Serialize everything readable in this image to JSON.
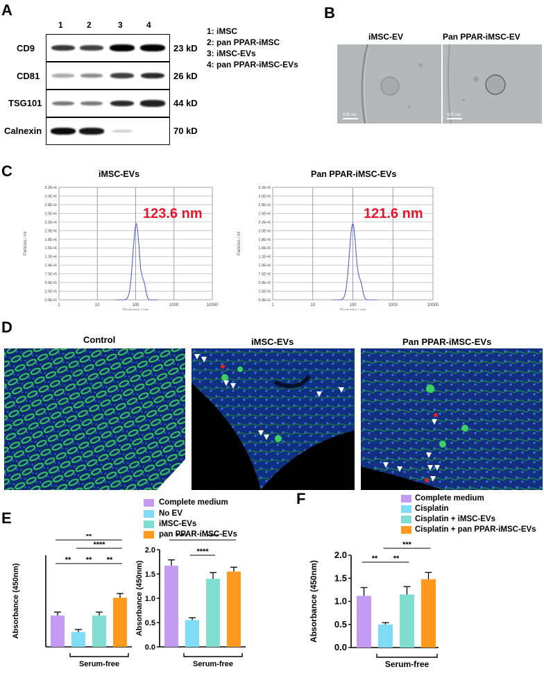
{
  "panelA": {
    "label": "A",
    "lanes": [
      "1",
      "2",
      "3",
      "4"
    ],
    "rows": [
      {
        "name": "CD9",
        "kd": "23 kD",
        "bands": [
          0.75,
          0.7,
          1.0,
          1.0
        ]
      },
      {
        "name": "CD81",
        "kd": "26 kD",
        "bands": [
          0.2,
          0.35,
          0.7,
          0.8
        ]
      },
      {
        "name": "TSG101",
        "kd": "44 kD",
        "bands": [
          0.45,
          0.45,
          0.8,
          0.85
        ]
      },
      {
        "name": "Calnexin",
        "kd": "70 kD",
        "bands": [
          0.95,
          0.9,
          0.05,
          0.0
        ]
      }
    ],
    "legend": [
      "1: iMSC",
      "2: pan PPAR-iMSC",
      "3: iMSC-EVs",
      "4: pan PPAR-iMSC-EVs"
    ]
  },
  "panelB": {
    "label": "B",
    "images": [
      {
        "title": "iMSC-EV",
        "scalebar": "100 nm"
      },
      {
        "title": "Pan PPAR-iMSC-EV",
        "scalebar": "100 nm"
      }
    ]
  },
  "panelC": {
    "label": "C",
    "charts": [
      {
        "title": "iMSC-EVs",
        "peak": "123.6 nm"
      },
      {
        "title": "Pan PPAR-iMSC-EVs",
        "peak": "121.6 nm"
      }
    ],
    "ylabel": "Particles / ml",
    "xlabel": "Diameter / nm",
    "yticks": [
      "0.0E+0",
      "2.5E+5",
      "5.0E+5",
      "7.5E+5",
      "1.0E+6",
      "1.2E+6",
      "1.5E+6",
      "1.8E+6",
      "2.0E+6",
      "2.2E+6",
      "2.5E+6",
      "2.8E+6",
      "3.0E+6",
      "3.2E+6"
    ],
    "xticks": [
      "1",
      "10",
      "100",
      "1000",
      "10000"
    ]
  },
  "panelD": {
    "label": "D",
    "images": [
      {
        "title": "Control"
      },
      {
        "title": "iMSC-EVs"
      },
      {
        "title": "Pan PPAR-iMSC-EVs"
      }
    ]
  },
  "panelE": {
    "label": "E",
    "legend": [
      {
        "name": "Complete medium",
        "color": "#c39bf2"
      },
      {
        "name": "No EV",
        "color": "#7fdcf7"
      },
      {
        "name": "iMSC-EVs",
        "color": "#7fded0"
      },
      {
        "name": "pan PPAR-iMSC-EVs",
        "color": "#ff9a1f"
      }
    ],
    "group_label": "Serum-free"
  },
  "panelF": {
    "label": "F",
    "legend": [
      {
        "name": "Complete medium",
        "color": "#c39bf2"
      },
      {
        "name": "Cisplatin",
        "color": "#7fdcf7"
      },
      {
        "name": "Cisplatin + iMSC-EVs",
        "color": "#7fded0"
      },
      {
        "name": "Cisplatin + pan PPAR-iMSC-EVs",
        "color": "#ff9a1f"
      }
    ],
    "group_label": "Serum-free"
  },
  "chart_data": [
    {
      "type": "bar",
      "ylabel": "Absorbance (450nm)",
      "categories": [
        "Complete medium",
        "No EV",
        "iMSC-EVs",
        "pan PPAR-iMSC-EVs"
      ],
      "values": [
        0.74,
        0.35,
        0.74,
        1.16
      ],
      "errors": [
        0.08,
        0.06,
        0.08,
        0.1
      ],
      "sig": [
        {
          "from": 0,
          "to": 3,
          "label": "**"
        },
        {
          "from": 1,
          "to": 3,
          "label": "****"
        },
        {
          "from": 0,
          "to": 1,
          "label": "**"
        },
        {
          "from": 1,
          "to": 2,
          "label": "**"
        },
        {
          "from": 2,
          "to": 3,
          "label": "**"
        }
      ]
    },
    {
      "type": "bar",
      "ylabel": "Absorbance (450nm)",
      "ylim": [
        0,
        2.0
      ],
      "yticks": [
        "0.0",
        "0.5",
        "1.0",
        "1.5",
        "2.0"
      ],
      "categories": [
        "Complete medium",
        "No EV",
        "iMSC-EVs",
        "pan PPAR-iMSC-EVs"
      ],
      "values": [
        1.67,
        0.55,
        1.4,
        1.55
      ],
      "errors": [
        0.12,
        0.05,
        0.13,
        0.09
      ],
      "sig": [
        {
          "from": 0,
          "to": 1,
          "label": "****"
        },
        {
          "from": 1,
          "to": 3,
          "label": "****"
        },
        {
          "from": 1,
          "to": 2,
          "label": "****"
        }
      ]
    },
    {
      "type": "bar",
      "ylabel": "Absorbance (450nm)",
      "ylim": [
        0,
        2.0
      ],
      "yticks": [
        "0.0",
        "0.5",
        "1.0",
        "1.5",
        "2.0"
      ],
      "categories": [
        "Complete medium",
        "Cisplatin",
        "Cisplatin + iMSC-EVs",
        "Cisplatin + pan PPAR-iMSC-EVs"
      ],
      "values": [
        1.12,
        0.5,
        1.15,
        1.48
      ],
      "errors": [
        0.18,
        0.04,
        0.17,
        0.15
      ],
      "sig": [
        {
          "from": 0,
          "to": 1,
          "label": "**"
        },
        {
          "from": 1,
          "to": 2,
          "label": "**"
        },
        {
          "from": 1,
          "to": 3,
          "label": "***"
        }
      ]
    }
  ]
}
